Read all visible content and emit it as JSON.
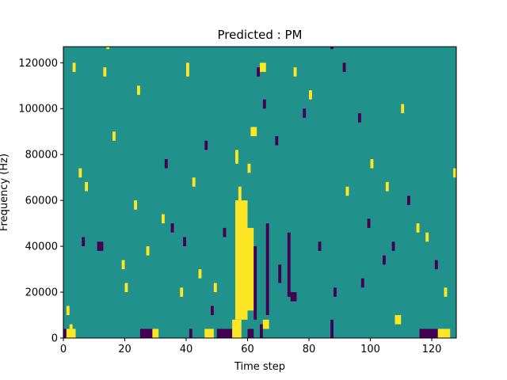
{
  "chart_data": {
    "type": "heatmap",
    "title": "Predicted : PM",
    "xlabel": "Time step",
    "ylabel": "Frequency (Hz)",
    "xlim": [
      0,
      128
    ],
    "ylim": [
      0,
      127000
    ],
    "xticks": [
      0,
      20,
      40,
      60,
      80,
      100,
      120
    ],
    "yticks": [
      0,
      20000,
      40000,
      60000,
      80000,
      100000,
      120000
    ],
    "fill_value": 0,
    "colors": {
      "-1": "#440154",
      "0": "#21918c",
      "1": "#fde725"
    },
    "regions": [
      [
        0,
        1,
        0,
        4000,
        -1
      ],
      [
        1,
        4,
        0,
        4000,
        1
      ],
      [
        2,
        3,
        4000,
        6000,
        1
      ],
      [
        1,
        2,
        10000,
        14000,
        1
      ],
      [
        25,
        29,
        0,
        4000,
        -1
      ],
      [
        29,
        31,
        0,
        4000,
        1
      ],
      [
        41,
        42,
        0,
        4000,
        -1
      ],
      [
        46,
        49,
        0,
        4000,
        1
      ],
      [
        50,
        55,
        0,
        4000,
        -1
      ],
      [
        55,
        58,
        0,
        8000,
        1
      ],
      [
        60,
        62,
        0,
        4000,
        -1
      ],
      [
        64,
        65,
        0,
        6000,
        -1
      ],
      [
        65,
        67,
        4000,
        8000,
        1
      ],
      [
        87,
        88,
        0,
        8000,
        -1
      ],
      [
        116,
        122,
        0,
        4000,
        -1
      ],
      [
        122,
        126,
        0,
        4000,
        1
      ],
      [
        56,
        60,
        8000,
        60000,
        1
      ],
      [
        57,
        58,
        60000,
        66000,
        1
      ],
      [
        56,
        57,
        76000,
        82000,
        1
      ],
      [
        60,
        62,
        12000,
        48000,
        1
      ],
      [
        61,
        63,
        88000,
        92000,
        1
      ],
      [
        62,
        63,
        8000,
        40000,
        -1
      ],
      [
        66,
        67,
        10000,
        50000,
        -1
      ],
      [
        58,
        59,
        50000,
        56000,
        1
      ],
      [
        74,
        76,
        16000,
        20000,
        -1
      ],
      [
        73,
        74,
        18000,
        46000,
        -1
      ],
      [
        70,
        71,
        24000,
        32000,
        -1
      ],
      [
        3,
        4,
        116000,
        120000,
        1
      ],
      [
        5,
        6,
        70000,
        74000,
        1
      ],
      [
        6,
        7,
        40000,
        44000,
        -1
      ],
      [
        7,
        8,
        64000,
        68000,
        1
      ],
      [
        11,
        13,
        38000,
        42000,
        -1
      ],
      [
        13,
        14,
        114000,
        118000,
        1
      ],
      [
        14,
        15,
        126000,
        128000,
        1
      ],
      [
        16,
        17,
        86000,
        90000,
        1
      ],
      [
        19,
        20,
        30000,
        34000,
        1
      ],
      [
        20,
        21,
        20000,
        24000,
        1
      ],
      [
        23,
        24,
        56000,
        60000,
        1
      ],
      [
        24,
        25,
        106000,
        110000,
        1
      ],
      [
        27,
        28,
        36000,
        40000,
        1
      ],
      [
        32,
        33,
        50000,
        54000,
        1
      ],
      [
        33,
        34,
        74000,
        78000,
        -1
      ],
      [
        35,
        36,
        46000,
        50000,
        -1
      ],
      [
        38,
        39,
        18000,
        22000,
        1
      ],
      [
        39,
        40,
        40000,
        44000,
        -1
      ],
      [
        40,
        41,
        114000,
        120000,
        1
      ],
      [
        42,
        43,
        66000,
        70000,
        1
      ],
      [
        44,
        45,
        26000,
        30000,
        1
      ],
      [
        46,
        47,
        82000,
        86000,
        -1
      ],
      [
        48,
        49,
        10000,
        14000,
        -1
      ],
      [
        49,
        50,
        20000,
        24000,
        1
      ],
      [
        52,
        53,
        44000,
        48000,
        -1
      ],
      [
        60,
        61,
        72000,
        76000,
        1
      ],
      [
        63,
        64,
        114000,
        118000,
        -1
      ],
      [
        64,
        66,
        116000,
        120000,
        1
      ],
      [
        65,
        66,
        100000,
        104000,
        -1
      ],
      [
        69,
        70,
        84000,
        88000,
        -1
      ],
      [
        75,
        76,
        114000,
        118000,
        1
      ],
      [
        78,
        79,
        96000,
        100000,
        -1
      ],
      [
        80,
        81,
        104000,
        108000,
        1
      ],
      [
        83,
        84,
        38000,
        42000,
        -1
      ],
      [
        87,
        88,
        126000,
        128000,
        -1
      ],
      [
        88,
        89,
        18000,
        22000,
        -1
      ],
      [
        91,
        92,
        116000,
        120000,
        -1
      ],
      [
        92,
        93,
        62000,
        66000,
        1
      ],
      [
        96,
        97,
        94000,
        98000,
        -1
      ],
      [
        97,
        98,
        22000,
        26000,
        -1
      ],
      [
        99,
        100,
        48000,
        52000,
        -1
      ],
      [
        100,
        101,
        74000,
        78000,
        1
      ],
      [
        104,
        105,
        32000,
        36000,
        -1
      ],
      [
        105,
        106,
        64000,
        68000,
        1
      ],
      [
        107,
        108,
        38000,
        42000,
        -1
      ],
      [
        108,
        110,
        6000,
        10000,
        1
      ],
      [
        110,
        111,
        98000,
        102000,
        1
      ],
      [
        112,
        113,
        58000,
        62000,
        -1
      ],
      [
        115,
        116,
        46000,
        50000,
        1
      ],
      [
        118,
        119,
        42000,
        46000,
        1
      ],
      [
        121,
        122,
        30000,
        34000,
        -1
      ],
      [
        124,
        125,
        18000,
        22000,
        1
      ],
      [
        127,
        128,
        70000,
        74000,
        1
      ]
    ]
  }
}
